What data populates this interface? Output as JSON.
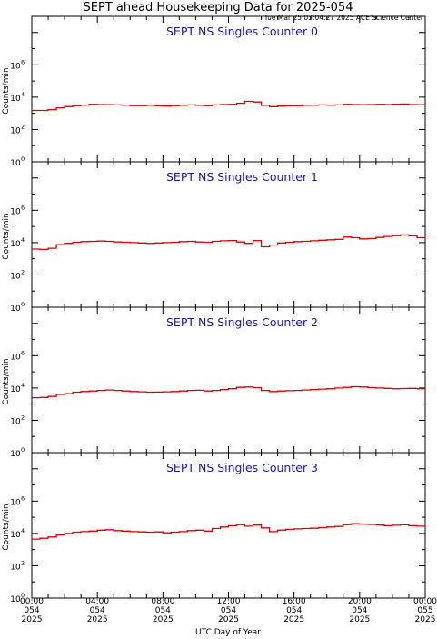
{
  "page": {
    "title": "SEPT ahead Housekeeping Data for 2025-054",
    "timestamp": "Tue Mar 25 03:04:27 2025 ACE Science Center"
  },
  "chart_data": [
    {
      "type": "line",
      "title": "SEPT NS Singles Counter 0",
      "xlabel": "UTC Day of Year",
      "ylabel": "Counts/min",
      "yscale": "log",
      "ylim": [
        1,
        1000000000
      ],
      "xlim": [
        "00:00 054 2025",
        "00:00 055 2025"
      ],
      "line_color": "#dd0000",
      "x": [
        "00:00",
        "00:30",
        "01:00",
        "01:30",
        "02:00",
        "02:30",
        "03:00",
        "03:30",
        "04:00",
        "04:30",
        "05:00",
        "05:30",
        "06:00",
        "06:30",
        "07:00",
        "07:30",
        "08:00",
        "08:30",
        "09:00",
        "09:30",
        "10:00",
        "10:30",
        "11:00",
        "11:30",
        "12:00",
        "12:30",
        "13:00",
        "13:30",
        "14:00",
        "14:30",
        "15:00",
        "15:30",
        "16:00",
        "16:30",
        "17:00",
        "17:30",
        "18:00",
        "18:30",
        "19:00",
        "19:30",
        "20:00",
        "20:30",
        "21:00",
        "21:30",
        "22:00",
        "22:30",
        "23:00",
        "23:30",
        "24:00"
      ],
      "values": [
        1500,
        1500,
        1700,
        2200,
        2600,
        3000,
        3200,
        3600,
        3500,
        3400,
        3300,
        3200,
        3000,
        3000,
        3100,
        2900,
        2800,
        3000,
        3100,
        3300,
        3100,
        3000,
        3300,
        3500,
        3600,
        4200,
        5500,
        5000,
        3100,
        2600,
        2800,
        2900,
        2900,
        3100,
        3200,
        3300,
        3200,
        3300,
        3600,
        3500,
        3400,
        3500,
        3600,
        3500,
        3700,
        3800,
        3500,
        3400,
        3300
      ]
    },
    {
      "type": "line",
      "title": "SEPT NS Singles Counter 1",
      "xlabel": "UTC Day of Year",
      "ylabel": "Counts/min",
      "yscale": "log",
      "ylim": [
        1,
        1000000000
      ],
      "xlim": [
        "00:00 054 2025",
        "00:00 055 2025"
      ],
      "line_color": "#dd0000",
      "x": [
        "00:00",
        "00:30",
        "01:00",
        "01:30",
        "02:00",
        "02:30",
        "03:00",
        "03:30",
        "04:00",
        "04:30",
        "05:00",
        "05:30",
        "06:00",
        "06:30",
        "07:00",
        "07:30",
        "08:00",
        "08:30",
        "09:00",
        "09:30",
        "10:00",
        "10:30",
        "11:00",
        "11:30",
        "12:00",
        "12:30",
        "13:00",
        "13:30",
        "14:00",
        "14:30",
        "15:00",
        "15:30",
        "16:00",
        "16:30",
        "17:00",
        "17:30",
        "18:00",
        "18:30",
        "19:00",
        "19:30",
        "20:00",
        "20:30",
        "21:00",
        "21:30",
        "22:00",
        "22:30",
        "23:00",
        "23:30",
        "24:00"
      ],
      "values": [
        4000,
        3800,
        4500,
        7500,
        9000,
        10500,
        11500,
        12000,
        12500,
        12000,
        11000,
        10500,
        10000,
        9500,
        9000,
        9500,
        10000,
        10500,
        11500,
        12000,
        11000,
        10500,
        12000,
        13000,
        13500,
        11000,
        9000,
        13500,
        5500,
        7000,
        9500,
        10500,
        11500,
        12000,
        13000,
        14000,
        15000,
        16000,
        22000,
        20000,
        17000,
        18000,
        21000,
        24000,
        27000,
        30000,
        26000,
        20000,
        15000
      ]
    },
    {
      "type": "line",
      "title": "SEPT NS Singles Counter 2",
      "xlabel": "UTC Day of Year",
      "ylabel": "Counts/min",
      "yscale": "log",
      "ylim": [
        1,
        1000000000
      ],
      "xlim": [
        "00:00 054 2025",
        "00:00 055 2025"
      ],
      "line_color": "#dd0000",
      "x": [
        "00:00",
        "00:30",
        "01:00",
        "01:30",
        "02:00",
        "02:30",
        "03:00",
        "03:30",
        "04:00",
        "04:30",
        "05:00",
        "05:30",
        "06:00",
        "06:30",
        "07:00",
        "07:30",
        "08:00",
        "08:30",
        "09:00",
        "09:30",
        "10:00",
        "10:30",
        "11:00",
        "11:30",
        "12:00",
        "12:30",
        "13:00",
        "13:30",
        "14:00",
        "14:30",
        "15:00",
        "15:30",
        "16:00",
        "16:30",
        "17:00",
        "17:30",
        "18:00",
        "18:30",
        "19:00",
        "19:30",
        "20:00",
        "20:30",
        "21:00",
        "21:30",
        "22:00",
        "22:30",
        "23:00",
        "23:30",
        "24:00"
      ],
      "values": [
        2500,
        2600,
        3000,
        4000,
        4500,
        5500,
        6000,
        6500,
        7000,
        7500,
        7000,
        6500,
        6000,
        5800,
        5500,
        5600,
        5800,
        6000,
        6500,
        7000,
        7200,
        6500,
        7000,
        8000,
        9000,
        11000,
        11500,
        10500,
        7000,
        6000,
        6500,
        6800,
        7000,
        7500,
        8000,
        8500,
        9000,
        10000,
        11000,
        12000,
        11500,
        10500,
        10000,
        9500,
        9000,
        9200,
        9500,
        9000,
        8500
      ]
    },
    {
      "type": "line",
      "title": "SEPT NS Singles Counter 3",
      "xlabel": "UTC Day of Year",
      "ylabel": "Counts/min",
      "yscale": "log",
      "ylim": [
        1,
        1000000000
      ],
      "xlim": [
        "00:00 054 2025",
        "00:00 055 2025"
      ],
      "line_color": "#dd0000",
      "x": [
        "00:00",
        "00:30",
        "01:00",
        "01:30",
        "02:00",
        "02:30",
        "03:00",
        "03:30",
        "04:00",
        "04:30",
        "05:00",
        "05:30",
        "06:00",
        "06:30",
        "07:00",
        "07:30",
        "08:00",
        "08:30",
        "09:00",
        "09:30",
        "10:00",
        "10:30",
        "11:00",
        "11:30",
        "12:00",
        "12:30",
        "13:00",
        "13:30",
        "14:00",
        "14:30",
        "15:00",
        "15:30",
        "16:00",
        "16:30",
        "17:00",
        "17:30",
        "18:00",
        "18:30",
        "19:00",
        "19:30",
        "20:00",
        "20:30",
        "21:00",
        "21:30",
        "22:00",
        "22:30",
        "23:00",
        "23:30",
        "24:00"
      ],
      "values": [
        4500,
        5000,
        6000,
        8000,
        10000,
        12000,
        13000,
        14000,
        16000,
        17000,
        15000,
        14000,
        13000,
        12500,
        12000,
        12500,
        11000,
        12000,
        13000,
        15000,
        16000,
        14000,
        20000,
        25000,
        30000,
        35000,
        28000,
        33000,
        22000,
        13000,
        16000,
        18000,
        19000,
        20000,
        21000,
        23000,
        25000,
        27000,
        35000,
        40000,
        38000,
        36000,
        33000,
        30000,
        32000,
        34000,
        30000,
        28000,
        31000
      ]
    }
  ],
  "axes": {
    "y_ticks": [
      {
        "base": "10",
        "exp": "0"
      },
      {
        "base": "10",
        "exp": "2"
      },
      {
        "base": "10",
        "exp": "4"
      },
      {
        "base": "10",
        "exp": "6"
      }
    ],
    "x_ticks": [
      {
        "time": "00:00",
        "doy": "054",
        "year": "2025"
      },
      {
        "time": "04:00",
        "doy": "054",
        "year": "2025"
      },
      {
        "time": "08:00",
        "doy": "054",
        "year": "2025"
      },
      {
        "time": "12:00",
        "doy": "054",
        "year": "2025"
      },
      {
        "time": "16:00",
        "doy": "054",
        "year": "2025"
      },
      {
        "time": "20:00",
        "doy": "054",
        "year": "2025"
      },
      {
        "time": "00:00",
        "doy": "055",
        "year": "2025"
      }
    ]
  }
}
